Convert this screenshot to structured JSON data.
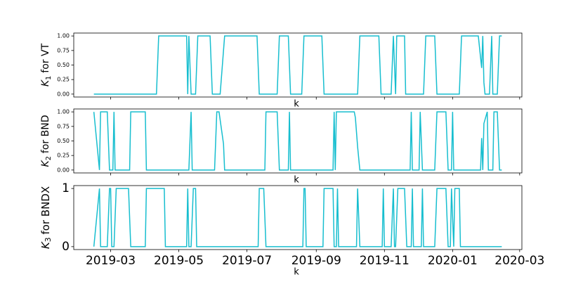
{
  "chart_data": [
    {
      "type": "line",
      "ylabel": [
        "K",
        "1",
        "for VT"
      ],
      "xlabel": "k",
      "x": [
        0,
        56,
        58,
        83,
        84,
        85,
        87,
        91,
        93,
        104,
        106,
        113,
        115,
        117,
        146,
        148,
        164,
        166,
        174,
        176,
        186,
        188,
        204,
        206,
        236,
        238,
        255,
        257,
        266,
        268,
        270,
        271,
        278,
        279,
        295,
        297,
        305,
        307,
        327,
        329,
        344,
        347,
        348,
        349,
        350,
        354,
        356,
        357,
        361,
        363,
        365
      ],
      "series": [
        {
          "color": "#17becf",
          "values": [
            0,
            0,
            1,
            1,
            0,
            1,
            0,
            0,
            1,
            1,
            0,
            0,
            0.5,
            1,
            1,
            0,
            0,
            1,
            1,
            0,
            0,
            1,
            1,
            0,
            0,
            1,
            1,
            0,
            0,
            1,
            0,
            1,
            1,
            0,
            0,
            1,
            1,
            0,
            0,
            1,
            1,
            0.45,
            1,
            0.2,
            0,
            0,
            1,
            0,
            0,
            1,
            1
          ]
        }
      ],
      "xlim": [
        -18,
        383
      ],
      "ylim": [
        -0.05,
        1.05
      ],
      "xticks": [
        15,
        76,
        137,
        199,
        260,
        321,
        381
      ],
      "yticks": [
        {
          "value": 0,
          "label": "0.00"
        },
        {
          "value": 0.25,
          "label": "0.25"
        },
        {
          "value": 0.5,
          "label": "0.50"
        },
        {
          "value": 0.75,
          "label": "0.75"
        },
        {
          "value": 1,
          "label": "1.00"
        }
      ]
    },
    {
      "type": "line",
      "ylabel": [
        "K",
        "2",
        "for BND"
      ],
      "xlabel": "k",
      "x": [
        0,
        5,
        6,
        12,
        14,
        17,
        18,
        19,
        32,
        33,
        46,
        47,
        85,
        87,
        88,
        108,
        110,
        112,
        116,
        117,
        153,
        154,
        164,
        166,
        174,
        175,
        176,
        214,
        215,
        216,
        217,
        233,
        234,
        236,
        238,
        283,
        284,
        285,
        291,
        292,
        294,
        305,
        307,
        315,
        317,
        320,
        321,
        322,
        346,
        347,
        348,
        349,
        352,
        353,
        357,
        358,
        361,
        363,
        365
      ],
      "series": [
        {
          "color": "#17becf",
          "values": [
            1,
            0,
            1,
            1,
            0,
            0,
            1,
            0,
            0,
            1,
            1,
            0,
            0,
            1,
            0,
            0,
            1,
            1,
            0.45,
            0,
            0,
            1,
            1,
            0,
            0,
            1,
            0,
            0,
            1,
            0,
            1,
            1,
            0.9,
            0.4,
            0,
            0,
            1,
            0,
            0,
            1,
            0,
            0,
            1,
            1,
            0,
            0,
            1,
            0,
            0,
            0.55,
            0,
            0.8,
            1,
            0,
            0,
            1,
            1,
            0,
            0
          ]
        }
      ],
      "xlim": [
        -18,
        383
      ],
      "ylim": [
        -0.05,
        1.05
      ],
      "xticks": [
        15,
        76,
        137,
        199,
        260,
        321,
        381
      ],
      "yticks": [
        {
          "value": 0,
          "label": "0.00"
        },
        {
          "value": 0.25,
          "label": "0.25"
        },
        {
          "value": 0.5,
          "label": "0.50"
        },
        {
          "value": 0.75,
          "label": "0.75"
        },
        {
          "value": 1,
          "label": "1.00"
        }
      ]
    },
    {
      "type": "line",
      "ylabel": [
        "K",
        "3",
        "for BNDX"
      ],
      "xlabel": "k",
      "x": [
        0,
        5,
        6,
        12,
        14,
        15,
        16,
        18,
        20,
        31,
        33,
        46,
        47,
        63,
        64,
        83,
        84,
        85,
        87,
        89,
        91,
        92,
        147,
        148,
        152,
        154,
        187,
        188,
        189,
        190,
        205,
        206,
        214,
        215,
        217,
        218,
        219,
        235,
        236,
        238,
        258,
        259,
        260,
        266,
        268,
        269,
        270,
        272,
        278,
        280,
        284,
        285,
        286,
        293,
        294,
        295,
        305,
        307,
        315,
        317,
        319,
        320,
        322,
        323,
        327,
        328,
        365
      ],
      "series": [
        {
          "color": "#17becf",
          "values": [
            0,
            1,
            0,
            0,
            1,
            1,
            0,
            0,
            1,
            1,
            0,
            0,
            1,
            1,
            0,
            0,
            1,
            0,
            0,
            1,
            1,
            0,
            0,
            1,
            1,
            0,
            0,
            1,
            1,
            0,
            0,
            1,
            1,
            0,
            0,
            1,
            0,
            0,
            1,
            0,
            0,
            1,
            0,
            0,
            1,
            0,
            0,
            1,
            1,
            0,
            0,
            1,
            0,
            0,
            1,
            0,
            0,
            1,
            1,
            0,
            0,
            1,
            0,
            1,
            1,
            0,
            0
          ]
        }
      ],
      "xlim": [
        -18,
        383
      ],
      "ylim": [
        -0.05,
        1.05
      ],
      "xticks": [
        {
          "value": 15,
          "label": "2019-03"
        },
        {
          "value": 76,
          "label": "2019-05"
        },
        {
          "value": 137,
          "label": "2019-07"
        },
        {
          "value": 199,
          "label": "2019-09"
        },
        {
          "value": 260,
          "label": "2019-11"
        },
        {
          "value": 321,
          "label": "2020-01"
        },
        {
          "value": 381,
          "label": "2020-03"
        }
      ],
      "yticks": [
        0,
        1
      ]
    }
  ]
}
